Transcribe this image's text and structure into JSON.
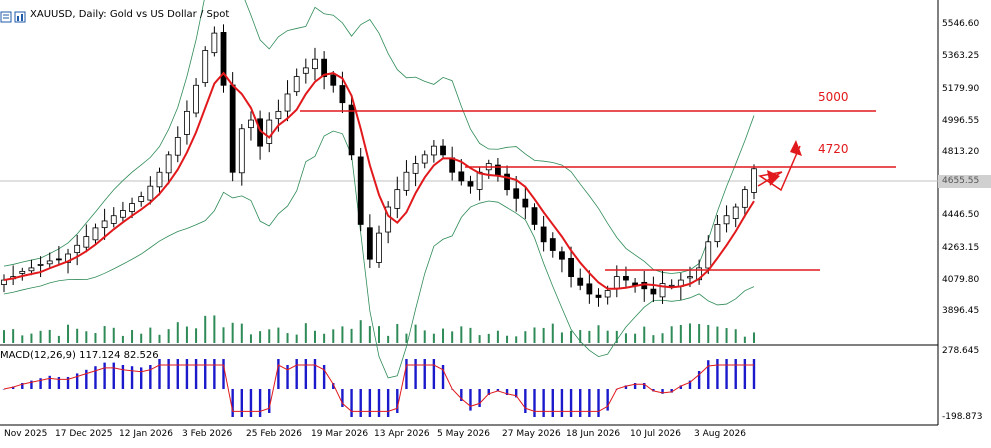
{
  "header": {
    "title": "XAUUSD, Daily:  Gold vs US Dollar / Spot"
  },
  "macd": {
    "label": "MACD(12,26,9) 117.124 82.526",
    "axis_top": "278.645",
    "axis_bottom": "-198.873"
  },
  "price_axis": [
    "5546.60",
    "5363.25",
    "5179.90",
    "4996.55",
    "4813.20",
    "4446.50",
    "4263.15",
    "4079.80",
    "3896.45"
  ],
  "current_price": "4655.55",
  "date_axis": [
    "Nov 2025",
    "17 Dec 2025",
    "12 Jan 2026",
    "3 Feb 2026",
    "25 Feb 2026",
    "19 Mar 2026",
    "13 Apr 2026",
    "5 May 2026",
    "27 May 2026",
    "18 Jun 2026",
    "10 Jul 2026",
    "3 Aug 2026"
  ],
  "annotations": {
    "level_5000": "5000",
    "level_4720": "4720"
  },
  "colors": {
    "bull_candle": "#000000",
    "bear_candle": "#000000",
    "ma_line": "#e1191c",
    "bollinger": "#2e8b57",
    "volume": "#2e8b57",
    "macd_hist": "#1a1acc",
    "macd_signal": "#e1191c",
    "horizontal_levels": "#e1191c"
  },
  "chart_data": {
    "type": "candlestick",
    "symbol": "XAUUSD",
    "timeframe": "Daily",
    "ylim": [
      3850,
      5600
    ],
    "price_ticks": [
      5546.6,
      5363.25,
      5179.9,
      4996.55,
      4813.2,
      4446.5,
      4263.15,
      4079.8,
      3896.45
    ],
    "close_series": [
      4080,
      4100,
      4130,
      4150,
      4170,
      4190,
      4200,
      4230,
      4280,
      4330,
      4380,
      4420,
      4450,
      4480,
      4520,
      4560,
      4620,
      4700,
      4800,
      4900,
      5050,
      5200,
      5400,
      5500,
      5200,
      4700,
      4950,
      5000,
      4850,
      5000,
      5050,
      5150,
      5250,
      5300,
      5350,
      5250,
      5200,
      5100,
      4800,
      4400,
      4200,
      4350,
      4500,
      4600,
      4700,
      4750,
      4800,
      4850,
      4800,
      4700,
      4650,
      4620,
      4700,
      4750,
      4680,
      4600,
      4550,
      4500,
      4400,
      4300,
      4250,
      4200,
      4100,
      4050,
      4000,
      3980,
      4020,
      4100,
      4080,
      4050,
      4030,
      4000,
      4060,
      4050,
      4080,
      4100,
      4150,
      4300,
      4400,
      4450,
      4500,
      4600,
      4720
    ],
    "horizontal_levels": [
      5000,
      4720,
      4140
    ],
    "macd": {
      "macd": 117.124,
      "signal": 82.526,
      "ylim": [
        -198.873,
        278.645
      ]
    }
  }
}
